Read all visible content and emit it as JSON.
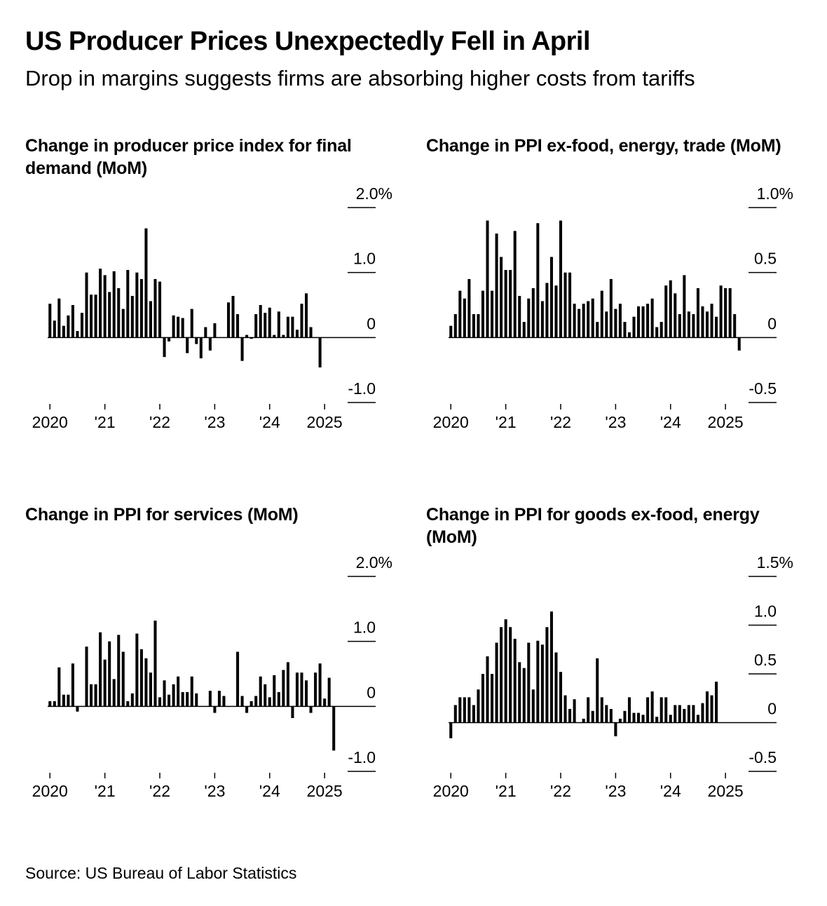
{
  "title": "US Producer Prices Unexpectedly Fell in April",
  "subtitle": "Drop in margins suggests firms are absorbing higher costs from tariffs",
  "source": "Source: US Bureau of Labor Statistics",
  "colors": {
    "bar": "#000000",
    "axis": "#000000",
    "background": "#ffffff"
  },
  "chart_data": [
    {
      "type": "bar",
      "title": "Change in producer price index for final demand (MoM)",
      "x_start": "2020-01",
      "x_end": "2025-04",
      "ylim": [
        -1.0,
        2.0
      ],
      "yticks": [
        {
          "value": 2.0,
          "label": "2.0%"
        },
        {
          "value": 1.0,
          "label": "1.0"
        },
        {
          "value": 0,
          "label": "0"
        },
        {
          "value": -1.0,
          "label": "-1.0"
        }
      ],
      "xticks": [
        {
          "date": "2020-01",
          "label": "2020"
        },
        {
          "date": "2021-01",
          "label": "'21"
        },
        {
          "date": "2022-01",
          "label": "'22"
        },
        {
          "date": "2023-01",
          "label": "'23"
        },
        {
          "date": "2024-01",
          "label": "'24"
        },
        {
          "date": "2025-01",
          "label": "2025"
        }
      ],
      "values": [
        0.52,
        0.26,
        0.6,
        0.18,
        0.34,
        0.5,
        0.1,
        0.38,
        1.0,
        0.66,
        0.66,
        1.06,
        0.96,
        0.7,
        1.02,
        0.76,
        0.44,
        1.04,
        0.64,
        1.0,
        0.9,
        1.68,
        0.56,
        0.9,
        0.86,
        -0.3,
        -0.06,
        0.34,
        0.32,
        0.3,
        -0.24,
        0.44,
        -0.1,
        -0.32,
        0.16,
        -0.2,
        0.22,
        0.0,
        0.0,
        0.54,
        0.64,
        0.36,
        -0.36,
        0.04,
        -0.02,
        0.36,
        0.5,
        0.38,
        0.46,
        0.04,
        0.4,
        0.04,
        0.32,
        0.32,
        0.12,
        0.52,
        0.68,
        0.16,
        0.0,
        -0.46
      ]
    },
    {
      "type": "bar",
      "title": "Change in PPI ex-food, energy, trade (MoM)",
      "x_start": "2020-01",
      "x_end": "2025-04",
      "ylim": [
        -0.5,
        1.0
      ],
      "yticks": [
        {
          "value": 1.0,
          "label": "1.0%"
        },
        {
          "value": 0.5,
          "label": "0.5"
        },
        {
          "value": 0,
          "label": "0"
        },
        {
          "value": -0.5,
          "label": "-0.5"
        }
      ],
      "xticks": [
        {
          "date": "2020-01",
          "label": "2020"
        },
        {
          "date": "2021-01",
          "label": "'21"
        },
        {
          "date": "2022-01",
          "label": "'22"
        },
        {
          "date": "2023-01",
          "label": "'23"
        },
        {
          "date": "2024-01",
          "label": "'24"
        },
        {
          "date": "2025-01",
          "label": "2025"
        }
      ],
      "values": [
        0.09,
        0.18,
        0.36,
        0.3,
        0.45,
        0.18,
        0.18,
        0.36,
        0.9,
        0.36,
        0.8,
        0.62,
        0.52,
        0.52,
        0.82,
        0.32,
        0.12,
        0.3,
        0.38,
        0.88,
        0.28,
        0.42,
        0.62,
        0.4,
        0.9,
        0.5,
        0.5,
        0.26,
        0.22,
        0.26,
        0.28,
        0.3,
        0.12,
        0.36,
        0.2,
        0.45,
        0.22,
        0.26,
        0.12,
        0.04,
        0.16,
        0.24,
        0.24,
        0.26,
        0.3,
        0.08,
        0.12,
        0.4,
        0.44,
        0.34,
        0.18,
        0.48,
        0.2,
        0.18,
        0.38,
        0.24,
        0.2,
        0.26,
        0.16,
        0.4,
        0.38,
        0.38,
        0.18,
        -0.1
      ]
    },
    {
      "type": "bar",
      "title": "Change in PPI for services (MoM)",
      "x_start": "2020-01",
      "x_end": "2025-04",
      "ylim": [
        -1.0,
        2.0
      ],
      "yticks": [
        {
          "value": 2.0,
          "label": "2.0%"
        },
        {
          "value": 1.0,
          "label": "1.0"
        },
        {
          "value": 0,
          "label": "0"
        },
        {
          "value": -1.0,
          "label": "-1.0"
        }
      ],
      "xticks": [
        {
          "date": "2020-01",
          "label": "2020"
        },
        {
          "date": "2021-01",
          "label": "'21"
        },
        {
          "date": "2022-01",
          "label": "'22"
        },
        {
          "date": "2023-01",
          "label": "'23"
        },
        {
          "date": "2024-01",
          "label": "'24"
        },
        {
          "date": "2025-01",
          "label": "2025"
        }
      ],
      "values": [
        0.08,
        0.08,
        0.6,
        0.18,
        0.18,
        0.66,
        -0.08,
        0.0,
        0.92,
        0.34,
        0.34,
        1.14,
        0.72,
        1.0,
        0.42,
        1.1,
        0.84,
        0.08,
        0.2,
        1.12,
        0.88,
        0.74,
        0.52,
        1.32,
        0.14,
        0.4,
        0.18,
        0.34,
        0.46,
        0.22,
        0.22,
        0.46,
        0.2,
        0.0,
        0.0,
        0.24,
        -0.1,
        0.24,
        0.16,
        0.0,
        0.0,
        0.84,
        0.16,
        -0.1,
        0.08,
        0.16,
        0.46,
        0.34,
        0.14,
        0.48,
        0.22,
        0.56,
        0.68,
        -0.18,
        0.52,
        0.52,
        0.4,
        -0.1,
        0.52,
        0.66,
        0.12,
        0.44,
        -0.68
      ]
    },
    {
      "type": "bar",
      "title": "Change in PPI for goods ex-food, energy (MoM)",
      "x_start": "2020-01",
      "x_end": "2025-04",
      "ylim": [
        -0.5,
        1.5
      ],
      "yticks": [
        {
          "value": 1.5,
          "label": "1.5%"
        },
        {
          "value": 1.0,
          "label": "1.0"
        },
        {
          "value": 0.5,
          "label": "0.5"
        },
        {
          "value": 0,
          "label": "0"
        },
        {
          "value": -0.5,
          "label": "-0.5"
        }
      ],
      "xticks": [
        {
          "date": "2020-01",
          "label": "2020"
        },
        {
          "date": "2021-01",
          "label": "'21"
        },
        {
          "date": "2022-01",
          "label": "'22"
        },
        {
          "date": "2023-01",
          "label": "'23"
        },
        {
          "date": "2024-01",
          "label": "'24"
        },
        {
          "date": "2025-01",
          "label": "2025"
        }
      ],
      "values": [
        -0.16,
        0.18,
        0.26,
        0.26,
        0.26,
        0.18,
        0.34,
        0.5,
        0.68,
        0.5,
        0.82,
        0.98,
        1.06,
        0.98,
        0.86,
        0.62,
        0.56,
        0.82,
        0.34,
        0.84,
        0.8,
        0.98,
        1.14,
        0.72,
        0.52,
        0.28,
        0.14,
        0.24,
        0.0,
        0.04,
        0.26,
        0.12,
        0.66,
        0.26,
        0.18,
        0.14,
        -0.14,
        0.04,
        0.12,
        0.26,
        0.1,
        0.1,
        0.08,
        0.26,
        0.32,
        0.06,
        0.26,
        0.26,
        0.08,
        0.18,
        0.18,
        0.14,
        0.18,
        0.18,
        0.08,
        0.2,
        0.32,
        0.28,
        0.42
      ]
    }
  ]
}
